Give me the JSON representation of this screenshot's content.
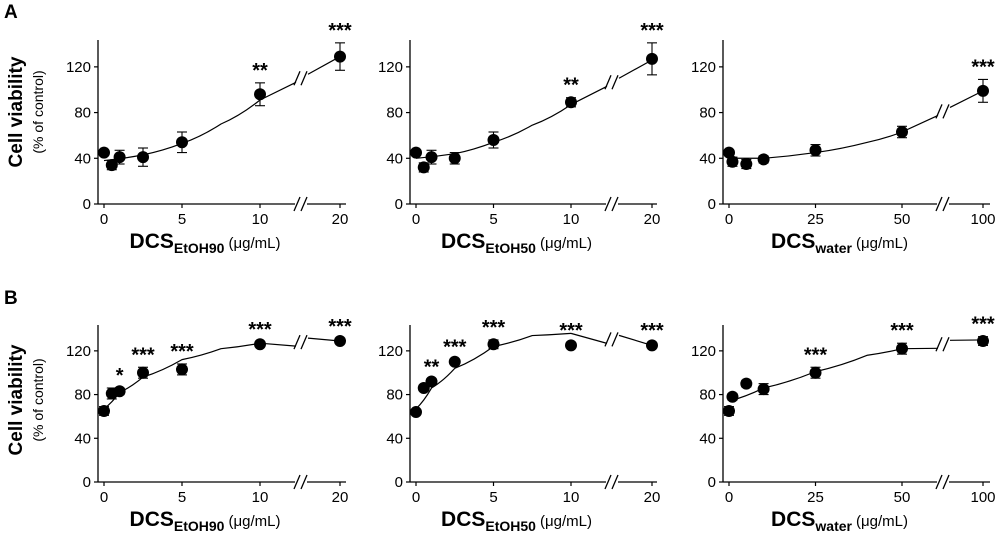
{
  "panels": [
    {
      "label": "A"
    },
    {
      "label": "B"
    }
  ],
  "y_axis": {
    "main": "Cell viability",
    "sub": "(% of control)"
  },
  "chart_data": [
    {
      "type": "scatter",
      "row": "A",
      "x_main": "DCS",
      "x_sub": "EtOH90",
      "x_unit": "(μg/mL)",
      "xticks": [
        0,
        5,
        10,
        20
      ],
      "ylim": [
        0,
        140
      ],
      "yticks": [
        0,
        40,
        80,
        120
      ],
      "break": true,
      "points": [
        {
          "x": 0,
          "y": 45,
          "err": 0
        },
        {
          "x": 0.5,
          "y": 34,
          "err": 4
        },
        {
          "x": 1,
          "y": 41,
          "err": 6
        },
        {
          "x": 2.5,
          "y": 41,
          "err": 8
        },
        {
          "x": 5,
          "y": 54,
          "err": 9
        },
        {
          "x": 10,
          "y": 96,
          "err": 10
        },
        {
          "x": 20,
          "y": 129,
          "err": 12
        }
      ],
      "fit": [
        [
          0,
          38
        ],
        [
          2.5,
          43
        ],
        [
          5,
          53
        ],
        [
          7.5,
          70
        ],
        [
          10,
          91
        ],
        [
          20,
          129
        ]
      ],
      "annotations": [
        {
          "x": 10,
          "text": "**"
        },
        {
          "x": 20,
          "text": "***"
        }
      ]
    },
    {
      "type": "scatter",
      "row": "A",
      "x_main": "DCS",
      "x_sub": "EtOH50",
      "x_unit": "(μg/mL)",
      "xticks": [
        0,
        5,
        10,
        20
      ],
      "ylim": [
        0,
        140
      ],
      "yticks": [
        0,
        40,
        80,
        120
      ],
      "break": true,
      "points": [
        {
          "x": 0,
          "y": 45,
          "err": 0
        },
        {
          "x": 0.5,
          "y": 32,
          "err": 4
        },
        {
          "x": 1,
          "y": 41,
          "err": 6
        },
        {
          "x": 2.5,
          "y": 40,
          "err": 5
        },
        {
          "x": 5,
          "y": 56,
          "err": 7
        },
        {
          "x": 10,
          "y": 89,
          "err": 4
        },
        {
          "x": 20,
          "y": 127,
          "err": 14
        }
      ],
      "fit": [
        [
          0,
          40
        ],
        [
          2.5,
          44
        ],
        [
          5,
          54
        ],
        [
          7.5,
          69
        ],
        [
          10,
          87
        ],
        [
          20,
          126
        ]
      ],
      "annotations": [
        {
          "x": 10,
          "text": "**"
        },
        {
          "x": 20,
          "text": "***"
        }
      ]
    },
    {
      "type": "scatter",
      "row": "A",
      "x_main": "DCS",
      "x_sub": "water",
      "x_unit": "(μg/mL)",
      "xticks": [
        0,
        25,
        50,
        100
      ],
      "ylim": [
        0,
        140
      ],
      "yticks": [
        0,
        40,
        80,
        120
      ],
      "break": true,
      "points": [
        {
          "x": 0,
          "y": 45,
          "err": 0
        },
        {
          "x": 1,
          "y": 37,
          "err": 4
        },
        {
          "x": 5,
          "y": 35,
          "err": 4
        },
        {
          "x": 10,
          "y": 39,
          "err": 3
        },
        {
          "x": 25,
          "y": 47,
          "err": 5
        },
        {
          "x": 50,
          "y": 63,
          "err": 5
        },
        {
          "x": 100,
          "y": 99,
          "err": 10
        }
      ],
      "fit": [
        [
          0,
          40
        ],
        [
          10,
          40
        ],
        [
          25,
          45
        ],
        [
          40,
          54
        ],
        [
          50,
          63
        ],
        [
          100,
          99
        ]
      ],
      "annotations": [
        {
          "x": 100,
          "text": "***"
        }
      ]
    },
    {
      "type": "scatter",
      "row": "B",
      "x_main": "DCS",
      "x_sub": "EtOH90",
      "x_unit": "(μg/mL)",
      "xticks": [
        0,
        5,
        10,
        20
      ],
      "ylim": [
        0,
        140
      ],
      "yticks": [
        0,
        40,
        80,
        120
      ],
      "break": true,
      "points": [
        {
          "x": 0,
          "y": 65,
          "err": 4
        },
        {
          "x": 0.5,
          "y": 81,
          "err": 5
        },
        {
          "x": 1,
          "y": 83,
          "err": 3
        },
        {
          "x": 2.5,
          "y": 100,
          "err": 5
        },
        {
          "x": 5,
          "y": 103,
          "err": 5
        },
        {
          "x": 10,
          "y": 126,
          "err": 2
        },
        {
          "x": 20,
          "y": 129,
          "err": 2
        }
      ],
      "fit": [
        [
          0,
          67
        ],
        [
          1,
          82
        ],
        [
          2.5,
          96
        ],
        [
          5,
          112
        ],
        [
          7.5,
          122
        ],
        [
          10,
          127
        ],
        [
          20,
          129
        ]
      ],
      "annotations": [
        {
          "x": 1,
          "text": "*"
        },
        {
          "x": 2.5,
          "text": "***"
        },
        {
          "x": 5,
          "text": "***"
        },
        {
          "x": 10,
          "text": "***"
        },
        {
          "x": 20,
          "text": "***"
        }
      ]
    },
    {
      "type": "scatter",
      "row": "B",
      "x_main": "DCS",
      "x_sub": "EtOH50",
      "x_unit": "(μg/mL)",
      "xticks": [
        0,
        5,
        10,
        20
      ],
      "ylim": [
        0,
        140
      ],
      "yticks": [
        0,
        40,
        80,
        120
      ],
      "break": true,
      "points": [
        {
          "x": 0,
          "y": 64,
          "err": 0
        },
        {
          "x": 0.5,
          "y": 86,
          "err": 2
        },
        {
          "x": 1,
          "y": 92,
          "err": 2
        },
        {
          "x": 2.5,
          "y": 110,
          "err": 2
        },
        {
          "x": 5,
          "y": 126,
          "err": 4
        },
        {
          "x": 10,
          "y": 125,
          "err": 2
        },
        {
          "x": 20,
          "y": 125,
          "err": 2
        }
      ],
      "fit": [
        [
          0,
          67
        ],
        [
          1,
          86
        ],
        [
          2.5,
          104
        ],
        [
          5,
          124
        ],
        [
          7.5,
          134
        ],
        [
          10,
          136
        ],
        [
          20,
          125
        ]
      ],
      "annotations": [
        {
          "x": 1,
          "text": "**"
        },
        {
          "x": 2.5,
          "text": "***"
        },
        {
          "x": 5,
          "text": "***"
        },
        {
          "x": 10,
          "text": "***"
        },
        {
          "x": 20,
          "text": "***"
        }
      ]
    },
    {
      "type": "scatter",
      "row": "B",
      "x_main": "DCS",
      "x_sub": "water",
      "x_unit": "(μg/mL)",
      "xticks": [
        0,
        25,
        50,
        100
      ],
      "ylim": [
        0,
        140
      ],
      "yticks": [
        0,
        40,
        80,
        120
      ],
      "break": true,
      "points": [
        {
          "x": 0,
          "y": 65,
          "err": 4
        },
        {
          "x": 1,
          "y": 78,
          "err": 3
        },
        {
          "x": 5,
          "y": 90,
          "err": 3
        },
        {
          "x": 10,
          "y": 85,
          "err": 5
        },
        {
          "x": 25,
          "y": 100,
          "err": 5
        },
        {
          "x": 50,
          "y": 122,
          "err": 5
        },
        {
          "x": 100,
          "y": 129,
          "err": 4
        }
      ],
      "fit": [
        [
          0,
          74
        ],
        [
          10,
          86
        ],
        [
          25,
          101
        ],
        [
          40,
          116
        ],
        [
          50,
          122
        ],
        [
          100,
          130
        ]
      ],
      "annotations": [
        {
          "x": 25,
          "text": "***"
        },
        {
          "x": 50,
          "text": "***"
        },
        {
          "x": 100,
          "text": "***"
        }
      ]
    }
  ]
}
